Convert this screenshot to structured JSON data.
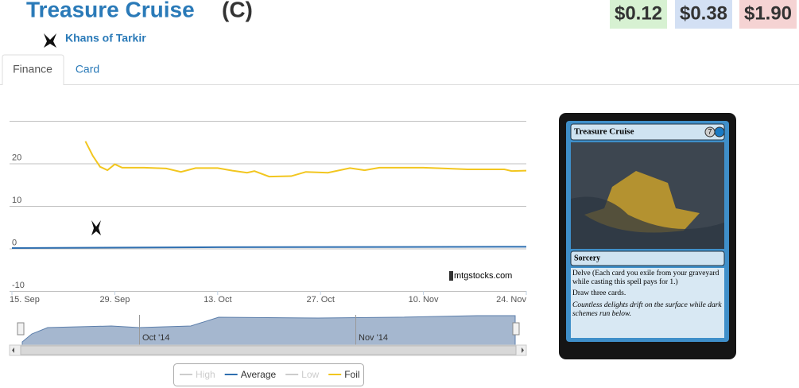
{
  "header": {
    "title": "Treasure Cruise",
    "rarity": "(C)",
    "set": "Khans of Tarkir",
    "prices": [
      "$0.12",
      "$0.38",
      "$1.90"
    ]
  },
  "tabs": [
    "Finance",
    "Card"
  ],
  "watermark": "mtgstocks.com",
  "navigator": {
    "labels": [
      "Oct '14",
      "Nov '14"
    ]
  },
  "card": {
    "name": "Treasure Cruise",
    "cost": "7",
    "type": "Sorcery",
    "rules": [
      "Delve (Each card you exile from your graveyard while casting this spell pays for 1.)",
      "Draw three cards."
    ],
    "flavor": "Countless delights drift on the surface while dark schemes run below."
  },
  "chart_data": {
    "type": "line",
    "xlim": [
      "09-15",
      "11-24"
    ],
    "xticks": [
      {
        "value": "09-15",
        "label": "15. Sep"
      },
      {
        "value": "09-29",
        "label": "29. Sep"
      },
      {
        "value": "10-13",
        "label": "13. Oct"
      },
      {
        "value": "10-27",
        "label": "27. Oct"
      },
      {
        "value": "11-10",
        "label": "10. Nov"
      },
      {
        "value": "11-24",
        "label": "24. Nov"
      }
    ],
    "ylim": [
      -10,
      30
    ],
    "yticks": [
      -10,
      0,
      10,
      20
    ],
    "grid": true,
    "series": [
      {
        "name": "High",
        "color": "#cccccc",
        "visible": false,
        "x": [],
        "values": []
      },
      {
        "name": "Average",
        "color": "#2f6fb0",
        "visible": true,
        "x": [
          "09-15",
          "10-13",
          "11-24"
        ],
        "values": [
          0.1,
          0.3,
          0.4
        ]
      },
      {
        "name": "Low",
        "color": "#cccccc",
        "visible": false,
        "x": [],
        "values": []
      },
      {
        "name": "Foil",
        "color": "#f2c61f",
        "visible": true,
        "x": [
          "09-25",
          "09-26",
          "09-27",
          "09-28",
          "09-29",
          "09-30",
          "10-03",
          "10-06",
          "10-08",
          "10-10",
          "10-13",
          "10-15",
          "10-17",
          "10-18",
          "10-20",
          "10-23",
          "10-25",
          "10-28",
          "10-31",
          "11-02",
          "11-04",
          "11-10",
          "11-13",
          "11-16",
          "11-21",
          "11-22",
          "11-24"
        ],
        "values": [
          25.2,
          21.8,
          19.2,
          18.4,
          19.8,
          19.0,
          19.0,
          18.8,
          18.0,
          18.9,
          18.9,
          18.3,
          17.8,
          18.2,
          16.9,
          17.0,
          18.0,
          17.8,
          18.9,
          18.4,
          19.0,
          19.0,
          18.8,
          18.6,
          18.6,
          18.2,
          18.3
        ]
      }
    ]
  }
}
